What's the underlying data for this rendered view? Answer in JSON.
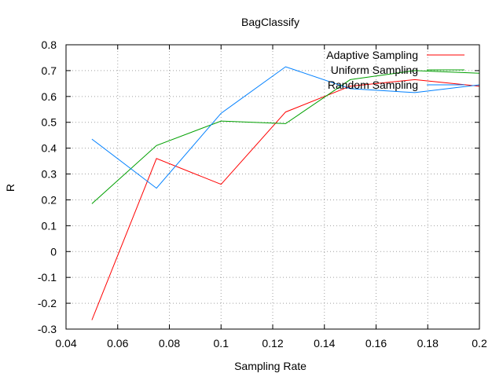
{
  "chart_data": {
    "type": "line",
    "title": "BagClassify",
    "xlabel": "Sampling Rate",
    "ylabel": "R",
    "xlim": [
      0.04,
      0.2
    ],
    "ylim": [
      -0.3,
      0.8
    ],
    "grid": true,
    "legend_position": "top-right",
    "x_ticks": [
      "0.04",
      "0.06",
      "0.08",
      "0.1",
      "0.12",
      "0.14",
      "0.16",
      "0.18",
      "0.2"
    ],
    "y_ticks": [
      "-0.3",
      "-0.2",
      "-0.1",
      "0",
      "0.1",
      "0.2",
      "0.3",
      "0.4",
      "0.5",
      "0.6",
      "0.7",
      "0.8"
    ],
    "x": [
      0.05,
      0.075,
      0.1,
      0.125,
      0.15,
      0.175,
      0.2
    ],
    "series": [
      {
        "name": "Adaptive Sampling",
        "color": "#ff0000",
        "values": [
          -0.265,
          0.36,
          0.26,
          0.54,
          0.64,
          0.665,
          0.64
        ]
      },
      {
        "name": "Uniform Sampling",
        "color": "#00a000",
        "values": [
          0.185,
          0.41,
          0.505,
          0.495,
          0.665,
          0.7,
          0.69
        ]
      },
      {
        "name": "Random Sampling",
        "color": "#0080ff",
        "values": [
          0.435,
          0.245,
          0.535,
          0.715,
          0.63,
          0.615,
          0.645
        ]
      }
    ]
  }
}
